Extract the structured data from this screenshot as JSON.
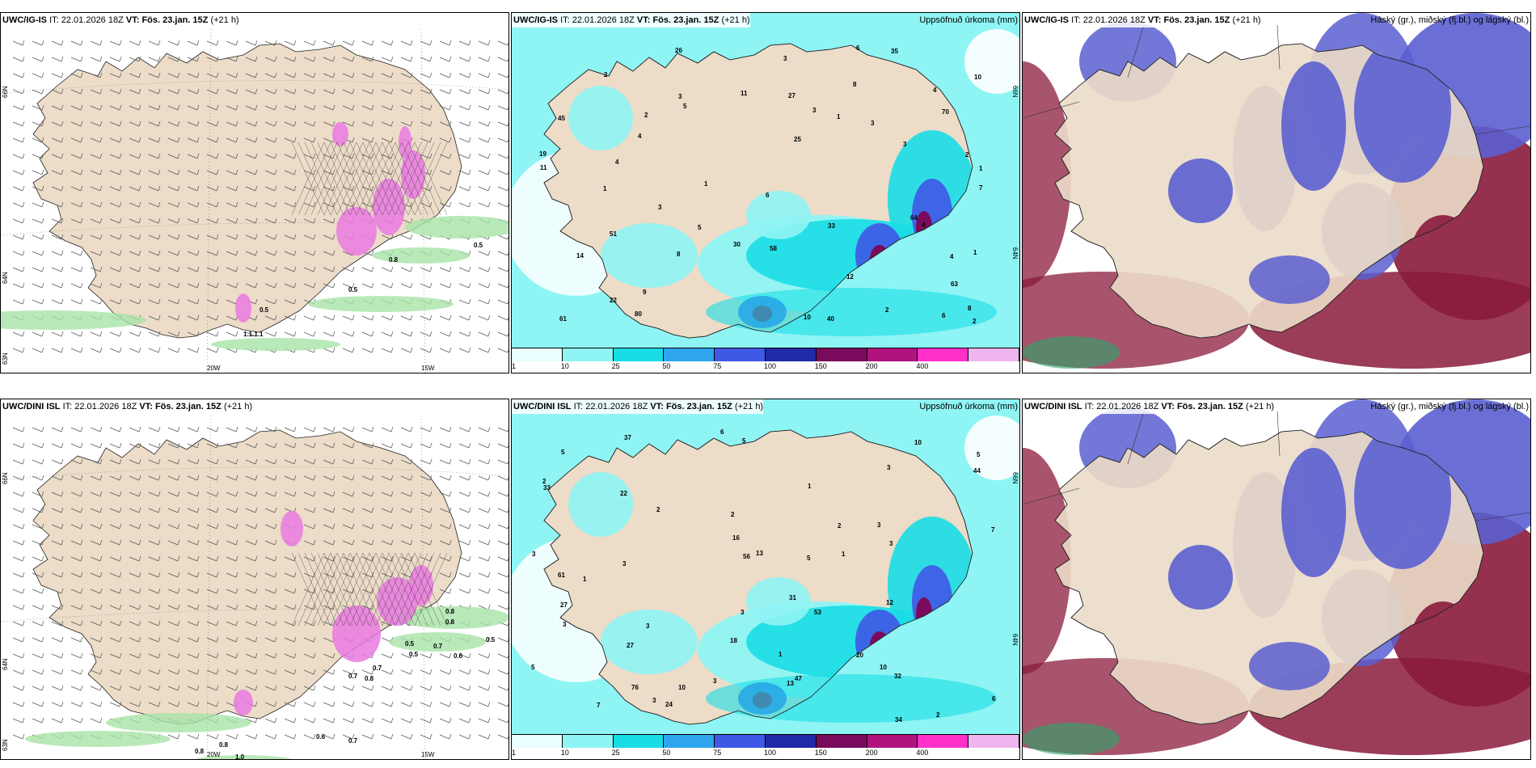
{
  "colors": {
    "land": "#ecdcc8",
    "sea": "#ffffff",
    "precip_light": "#8ff4f4",
    "precip_mid": "#19dde6",
    "precip_blue": "#3f58e6",
    "precip_purple": "#7a0a5c",
    "snow_pink": "#ea7ae0",
    "rain_green": "#a8e4a8",
    "high_cloud": "#5b5fd0",
    "low_cloud": "#8a1b3b"
  },
  "rows": [
    {
      "panels": [
        {
          "model": "UWC/IG-IS",
          "it_label": "IT:",
          "it_value": "22.01.2026 18Z",
          "vt_label": "VT:",
          "vt_value": "Fös. 23.jan. 15Z",
          "lead": "(+21 h)",
          "right_title": "",
          "lon_labels": [
            "20W",
            "15W"
          ],
          "lat_labels": [
            "66N",
            "64N",
            "63N"
          ],
          "values": [
            "0.5",
            "0.8",
            "0.5",
            "0.5",
            "1.1.1.1"
          ]
        },
        {
          "model": "UWC/IG-IS",
          "it_label": "IT:",
          "it_value": "22.01.2026 18Z",
          "vt_label": "VT:",
          "vt_value": "Fös. 23.jan. 15Z",
          "lead": "(+21 h)",
          "right_title": "Uppsöfnuð úrkoma (mm)",
          "lat_labels": [
            "66N",
            "64N"
          ],
          "values": [
            "5",
            "2",
            "1",
            "1",
            "1",
            "1",
            "5",
            "6",
            "4",
            "4",
            "4",
            "4",
            "3",
            "8",
            "14",
            "6",
            "3",
            "19",
            "26",
            "11",
            "8",
            "27",
            "22",
            "51",
            "25",
            "35",
            "61",
            "12",
            "10",
            "10",
            "80",
            "2",
            "1",
            "3",
            "4",
            "11",
            "7",
            "33",
            "70",
            "64",
            "40",
            "45",
            "30",
            "58",
            "63",
            "2",
            "3",
            "3",
            "3",
            "9",
            "6",
            "2",
            "2",
            "8"
          ],
          "colorbar": [
            "1",
            "10",
            "25",
            "50",
            "75",
            "100",
            "150",
            "200",
            "400"
          ]
        },
        {
          "model": "UWC/IG-IS",
          "it_label": "IT:",
          "it_value": "22.01.2026 18Z",
          "vt_label": "VT:",
          "vt_value": "Fös. 23.jan. 15Z",
          "lead": "(+21 h)",
          "right_title": "Háský (gr.), miðský (fj.bl.) og lágský (bl.)"
        }
      ]
    },
    {
      "panels": [
        {
          "model": "UWC/DINI ISL",
          "it_label": "IT:",
          "it_value": "22.01.2026 18Z",
          "vt_label": "VT:",
          "vt_value": "Fös. 23.jan. 15Z",
          "lead": "(+21 h)",
          "right_title": "",
          "lon_labels": [
            "20W",
            "15W"
          ],
          "lat_labels": [
            "66N",
            "64N",
            "63N"
          ],
          "values": [
            "0.8",
            "0.8",
            "0.5",
            "0.7",
            "0.6",
            "0.5",
            "0.7",
            "0.8",
            "0.6",
            "0.7",
            "0.7",
            "0.8",
            "0.8",
            "1.0",
            "0.5"
          ]
        },
        {
          "model": "UWC/DINI ISL",
          "it_label": "IT:",
          "it_value": "22.01.2026 18Z",
          "vt_label": "VT:",
          "vt_value": "Fös. 23.jan. 15Z",
          "lead": "(+21 h)",
          "right_title": "Uppsöfnuð úrkoma (mm)",
          "lat_labels": [
            "66N",
            "64N"
          ],
          "values": [
            "3",
            "5",
            "3",
            "5",
            "2",
            "2",
            "1",
            "1",
            "2",
            "10",
            "13",
            "12",
            "6",
            "33",
            "22",
            "27",
            "47",
            "61",
            "31",
            "18",
            "20",
            "32",
            "44",
            "16",
            "76",
            "56",
            "53",
            "37",
            "24",
            "13",
            "27",
            "34",
            "5",
            "7",
            "3",
            "3",
            "3",
            "5",
            "10",
            "2",
            "1",
            "1",
            "6",
            "7",
            "3",
            "3",
            "3",
            "5",
            "3",
            "3",
            "2",
            "10"
          ],
          "colorbar": [
            "1",
            "10",
            "25",
            "50",
            "75",
            "100",
            "150",
            "200",
            "400"
          ]
        },
        {
          "model": "UWC/DINI ISL",
          "it_label": "IT:",
          "it_value": "22.01.2026 18Z",
          "vt_label": "VT:",
          "vt_value": "Fös. 23.jan. 15Z",
          "lead": "(+21 h)",
          "right_title": "Háský (gr.), miðský (fj.bl.) og lágský (bl.)"
        }
      ]
    }
  ]
}
